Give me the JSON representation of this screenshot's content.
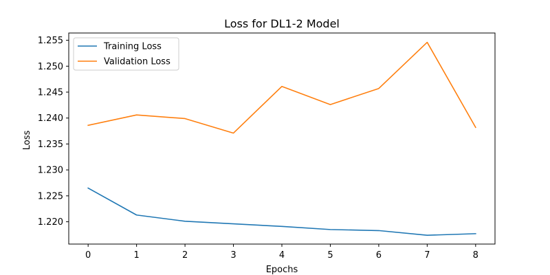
{
  "chart_data": {
    "type": "line",
    "title": "Loss for DL1-2 Model",
    "xlabel": "Epochs",
    "ylabel": "Loss",
    "x": [
      0,
      1,
      2,
      3,
      4,
      5,
      6,
      7,
      8
    ],
    "xlim": [
      -0.4,
      8.4
    ],
    "ylim": [
      1.2157,
      1.2564
    ],
    "xticks": [
      0,
      1,
      2,
      3,
      4,
      5,
      6,
      7,
      8
    ],
    "yticks": [
      1.22,
      1.225,
      1.23,
      1.235,
      1.24,
      1.245,
      1.25,
      1.255
    ],
    "grid": false,
    "legend": "top-left",
    "series": [
      {
        "name": "Training Loss",
        "color": "#1f77b4",
        "values": [
          1.2265,
          1.2213,
          1.2201,
          1.2196,
          1.2191,
          1.2185,
          1.2183,
          1.2174,
          1.2177
        ]
      },
      {
        "name": "Validation Loss",
        "color": "#ff7f0e",
        "values": [
          1.2386,
          1.2406,
          1.2399,
          1.2371,
          1.2461,
          1.2426,
          1.2457,
          1.2546,
          1.2382
        ]
      }
    ]
  }
}
